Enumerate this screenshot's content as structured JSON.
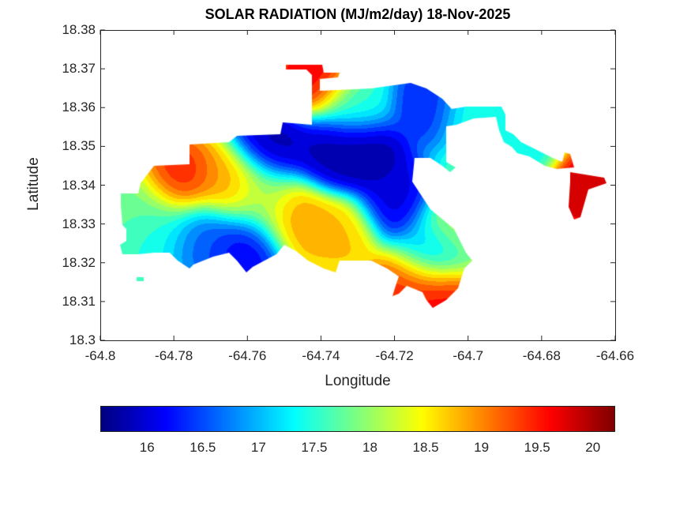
{
  "chart_data": {
    "type": "heatmap",
    "subtype": "filled-contour-map",
    "title": "SOLAR RADIATION (MJ/m2/day) 18-Nov-2025",
    "xlabel": "Longitude",
    "ylabel": "Latitude",
    "xlim": [
      -64.8,
      -64.66
    ],
    "ylim": [
      18.3,
      18.38
    ],
    "xticks": [
      "-64.8",
      "-64.78",
      "-64.76",
      "-64.74",
      "-64.72",
      "-64.7",
      "-64.68",
      "-64.66"
    ],
    "yticks": [
      "18.3",
      "18.31",
      "18.32",
      "18.33",
      "18.34",
      "18.35",
      "18.36",
      "18.37",
      "18.38"
    ],
    "colormap": "jet",
    "clim": [
      15.58,
      20.2
    ],
    "colorbar": {
      "location": "bottom",
      "ticks": [
        "16",
        "16.5",
        "17",
        "17.5",
        "18",
        "18.5",
        "19",
        "19.5",
        "20"
      ]
    },
    "grid": false,
    "background_value": 17.8,
    "points": [
      {
        "lon": -64.779,
        "lat": 18.3413,
        "value": 19.6
      },
      {
        "lon": -64.765,
        "lat": 18.3405,
        "value": 19.0
      },
      {
        "lon": -64.7532,
        "lat": 18.3501,
        "value": 15.7
      },
      {
        "lon": -64.7371,
        "lat": 18.348,
        "value": 15.7
      },
      {
        "lon": -64.7274,
        "lat": 18.348,
        "value": 15.6
      },
      {
        "lon": -64.7199,
        "lat": 18.3358,
        "value": 15.9
      },
      {
        "lon": -64.7113,
        "lat": 18.3613,
        "value": 16.2
      },
      {
        "lon": -64.7467,
        "lat": 18.3318,
        "value": 19.0
      },
      {
        "lon": -64.7349,
        "lat": 18.3277,
        "value": 18.8
      },
      {
        "lon": -64.7607,
        "lat": 18.324,
        "value": 16.0
      },
      {
        "lon": -64.7725,
        "lat": 18.3267,
        "value": 16.5
      },
      {
        "lon": -64.7102,
        "lat": 18.3226,
        "value": 16.6
      },
      {
        "lon": -64.7167,
        "lat": 18.3145,
        "value": 19.6
      },
      {
        "lon": -64.7081,
        "lat": 18.3114,
        "value": 19.8
      },
      {
        "lon": -64.6684,
        "lat": 18.3389,
        "value": 20.0
      },
      {
        "lon": -64.7414,
        "lat": 18.3684,
        "value": 19.8
      },
      {
        "lon": -64.7908,
        "lat": 18.3348,
        "value": 17.8
      },
      {
        "lon": -64.7843,
        "lat": 18.3287,
        "value": 17.4
      },
      {
        "lon": -64.7306,
        "lat": 18.3613,
        "value": 17.5
      },
      {
        "lon": -64.6984,
        "lat": 18.3592,
        "value": 17.5
      },
      {
        "lon": -64.6856,
        "lat": 18.3501,
        "value": 17.3
      },
      {
        "lon": -64.7049,
        "lat": 18.3287,
        "value": 18.3
      },
      {
        "lon": -64.7564,
        "lat": 18.3368,
        "value": 18.0
      }
    ]
  }
}
